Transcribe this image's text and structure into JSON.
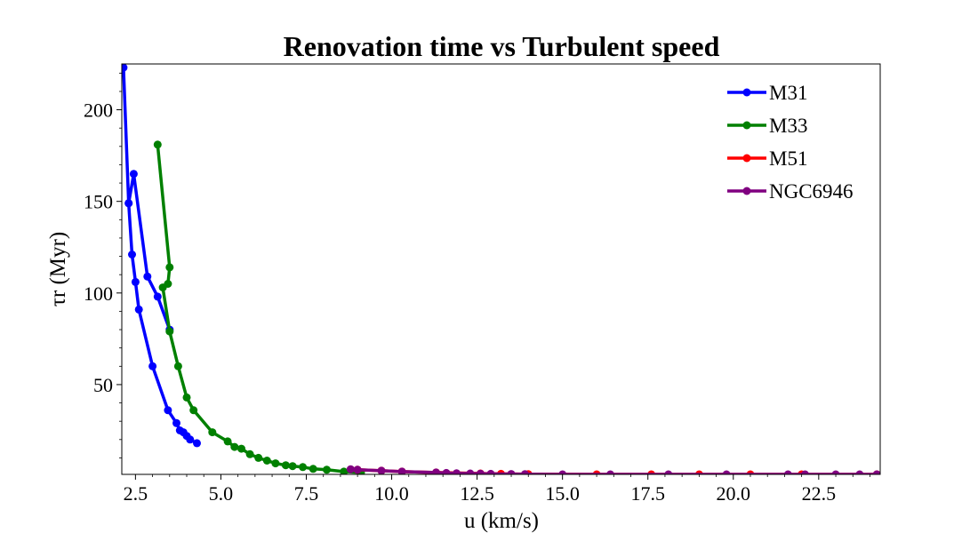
{
  "chart_data": {
    "type": "line",
    "title": "Renovation time vs Turbulent speed",
    "xlabel": "u (km/s)",
    "ylabel": "τr (Myr)",
    "xlim": [
      2.1,
      24.3
    ],
    "ylim": [
      1,
      225
    ],
    "xticks": [
      2.5,
      5.0,
      7.5,
      10.0,
      12.5,
      15.0,
      17.5,
      20.0,
      22.5
    ],
    "xtick_labels": [
      "2.5",
      "5.0",
      "7.5",
      "10.0",
      "12.5",
      "15.0",
      "17.5",
      "20.0",
      "22.5"
    ],
    "yticks": [
      50,
      100,
      150,
      200
    ],
    "ytick_labels": [
      "50",
      "100",
      "150",
      "200"
    ],
    "grid": false,
    "legend_position": "top-right",
    "series": [
      {
        "name": "M31",
        "color": "#0000ff",
        "x": [
          3.5,
          3.15,
          2.85,
          2.45,
          2.3,
          2.15,
          2.3,
          2.4,
          2.5,
          2.6,
          3.0,
          3.45,
          3.7,
          3.8,
          3.9,
          4.0,
          4.1,
          4.3
        ],
        "y": [
          80,
          98,
          109,
          165,
          149,
          223,
          149,
          121,
          106,
          91,
          60,
          36,
          29,
          25,
          24,
          22,
          20,
          18
        ]
      },
      {
        "name": "M33",
        "color": "#008000",
        "x": [
          3.15,
          3.5,
          3.45,
          3.3,
          3.5,
          3.75,
          4.0,
          4.2,
          4.75,
          5.2,
          5.4,
          5.6,
          5.85,
          6.1,
          6.35,
          6.6,
          6.9,
          7.1,
          7.4,
          7.7,
          8.1,
          8.6,
          9.1
        ],
        "y": [
          181,
          114,
          105,
          103,
          79,
          60,
          43,
          36,
          24,
          19,
          16,
          15,
          12,
          10,
          8.5,
          7,
          6,
          5.5,
          5,
          4,
          3.5,
          2.5,
          2
        ]
      },
      {
        "name": "M51",
        "color": "#ff0000",
        "x": [
          9.0,
          9.7,
          10.3,
          11.3,
          12.6,
          13.2,
          14.0,
          16.0,
          17.6,
          19.0,
          20.5,
          22.0,
          24.2
        ],
        "y": [
          3.5,
          3,
          2.5,
          2,
          1.5,
          1.3,
          1.1,
          1.0,
          0.9,
          0.85,
          0.8,
          0.75,
          0.7
        ]
      },
      {
        "name": "NGC6946",
        "color": "#800080",
        "x": [
          8.8,
          9.0,
          9.7,
          10.3,
          11.3,
          11.6,
          11.9,
          12.3,
          12.6,
          12.9,
          13.5,
          13.9,
          15.0,
          16.4,
          18.1,
          19.8,
          21.6,
          22.1,
          23.0,
          23.7,
          24.2
        ],
        "y": [
          3.8,
          3.5,
          3,
          2.5,
          2,
          1.8,
          1.6,
          1.5,
          1.4,
          1.3,
          1.2,
          1.1,
          1.0,
          0.95,
          0.9,
          0.85,
          0.8,
          0.78,
          0.75,
          0.72,
          0.7
        ]
      }
    ]
  }
}
